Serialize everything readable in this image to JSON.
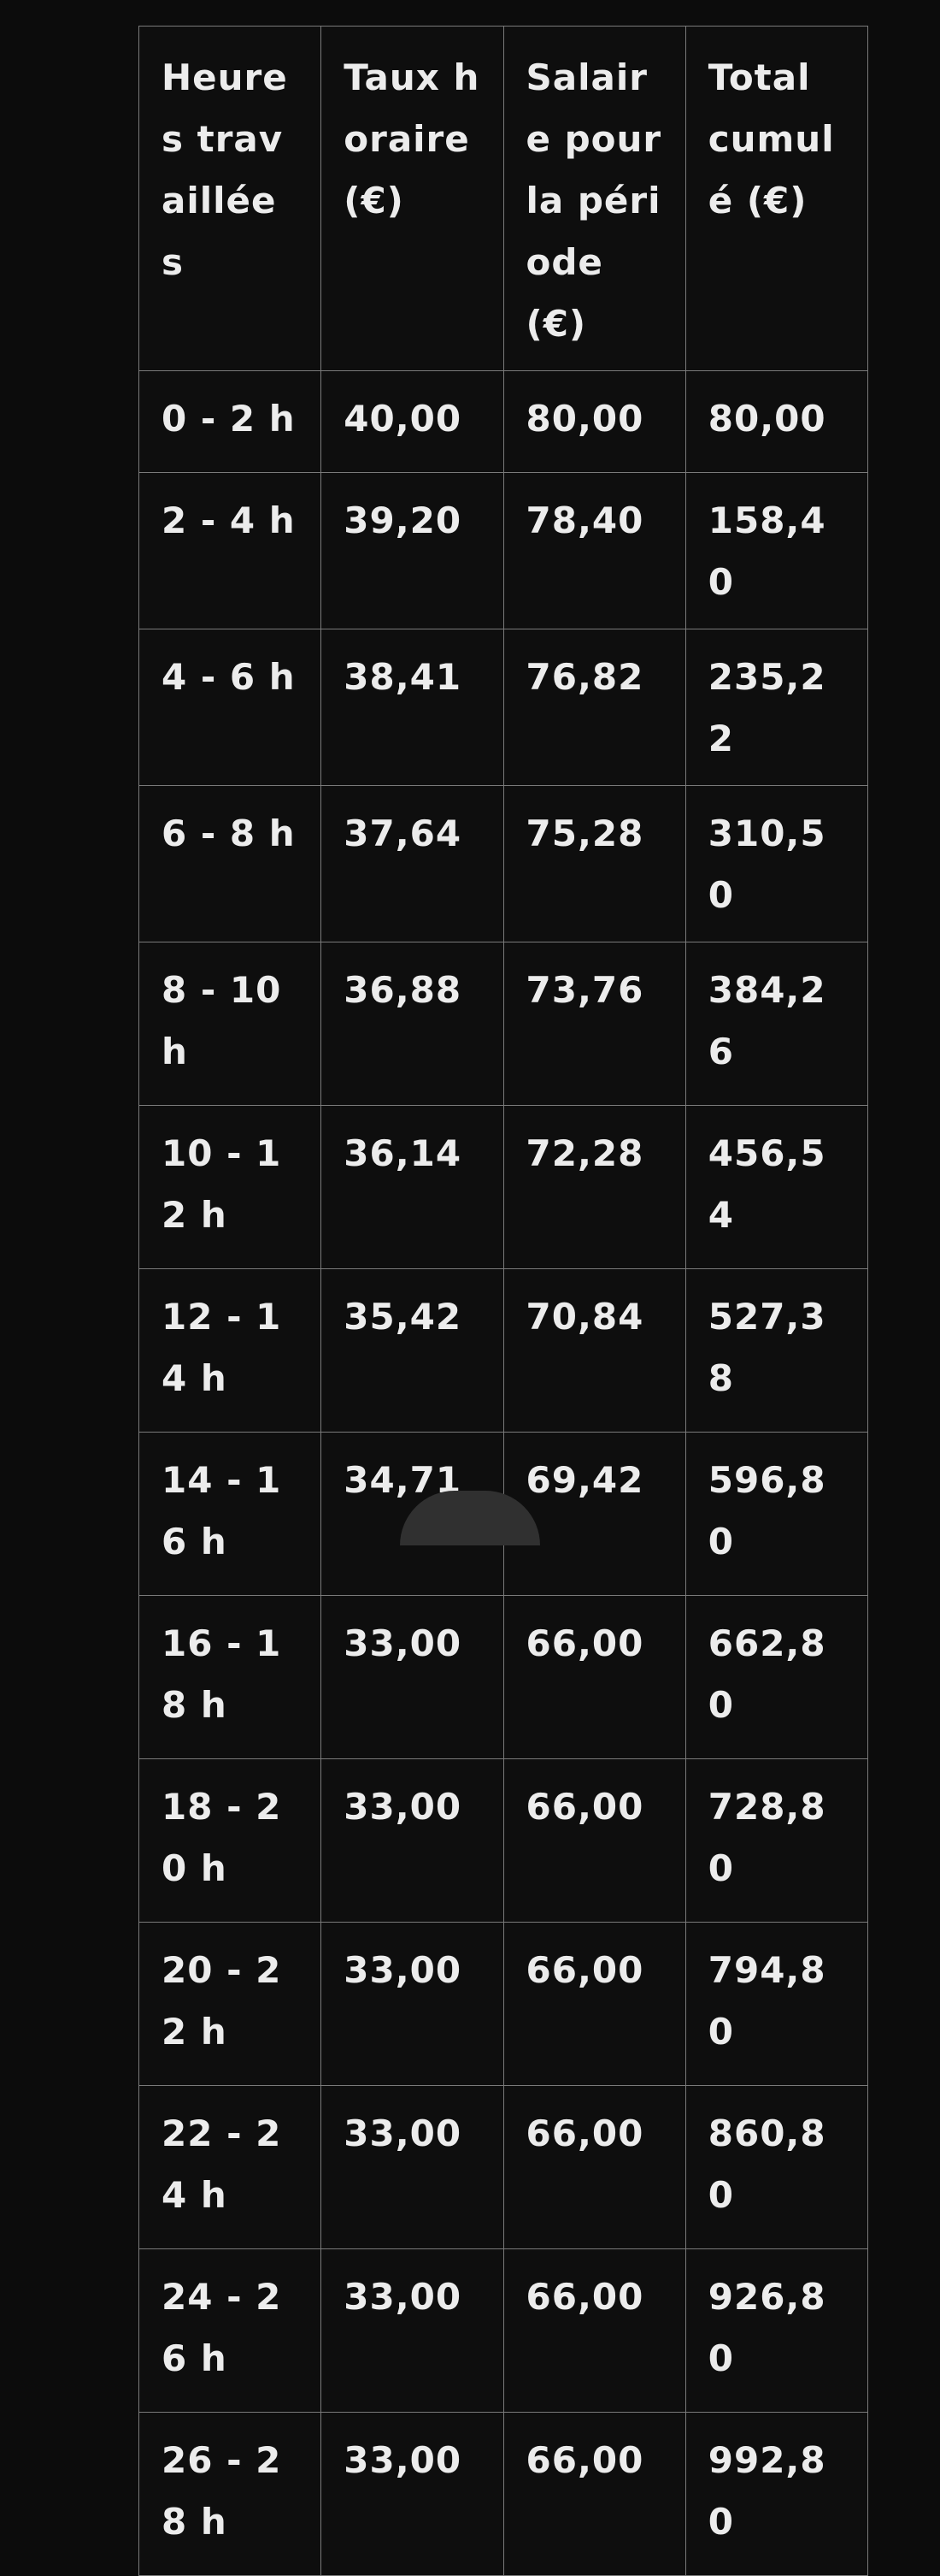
{
  "table": {
    "headers": [
      "Heures travaillées",
      "Taux horaire (€)",
      "Salaire pour la période (€)",
      "Total cumulé (€)"
    ],
    "rows": [
      [
        "0 - 2 h",
        "40,00",
        "80,00",
        "80,00"
      ],
      [
        "2 - 4 h",
        "39,20",
        "78,40",
        "158,40"
      ],
      [
        "4 - 6 h",
        "38,41",
        "76,82",
        "235,22"
      ],
      [
        "6 - 8 h",
        "37,64",
        "75,28",
        "310,50"
      ],
      [
        "8 - 10 h",
        "36,88",
        "73,76",
        "384,26"
      ],
      [
        "10 - 12 h",
        "36,14",
        "72,28",
        "456,54"
      ],
      [
        "12 - 14 h",
        "35,42",
        "70,84",
        "527,38"
      ],
      [
        "14 - 16 h",
        "34,71",
        "69,42",
        "596,80"
      ],
      [
        "16 - 18 h",
        "33,00",
        "66,00",
        "662,80"
      ],
      [
        "18 - 20 h",
        "33,00",
        "66,00",
        "728,80"
      ],
      [
        "20 - 22 h",
        "33,00",
        "66,00",
        "794,80"
      ],
      [
        "22 - 24 h",
        "33,00",
        "66,00",
        "860,80"
      ],
      [
        "24 - 26 h",
        "33,00",
        "66,00",
        "926,80"
      ],
      [
        "26 - 28 h",
        "33,00",
        "66,00",
        "992,80"
      ]
    ]
  }
}
